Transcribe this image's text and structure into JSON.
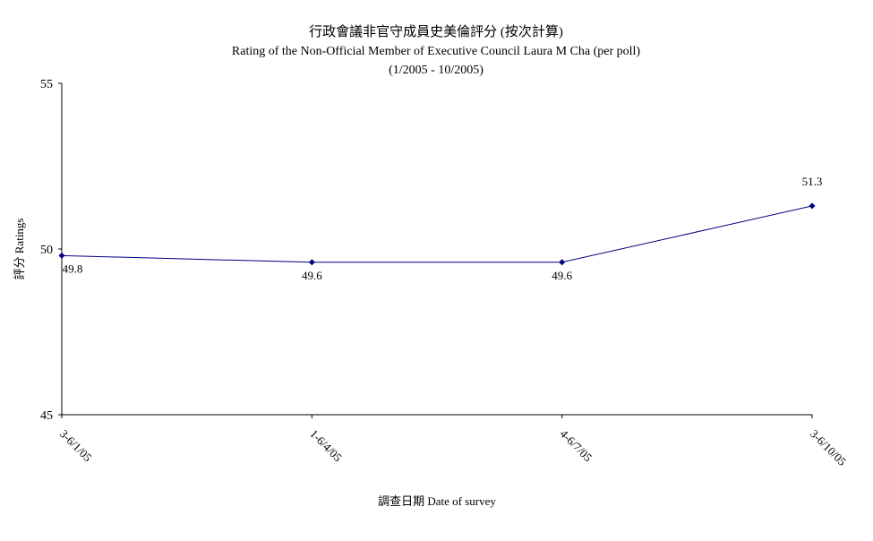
{
  "chart_data": {
    "type": "line",
    "title": "行政會議非官守成員史美倫評分 (按次計算)",
    "subtitle": "Rating of the Non-Official Member of Executive Council Laura M Cha (per poll)",
    "subtitle2": "(1/2005 - 10/2005)",
    "xlabel": "調查日期 Date of survey",
    "ylabel": "評分 Ratings",
    "categories": [
      "3-6/1/05",
      "1-6/4/05",
      "4-6/7/05",
      "3-6/10/05"
    ],
    "values": [
      49.8,
      49.6,
      49.6,
      51.3
    ],
    "data_labels": [
      "49.8",
      "49.6",
      "49.6",
      "51.3"
    ],
    "ylim": [
      45,
      55
    ],
    "yticks": [
      "45",
      "50",
      "55"
    ],
    "grid": false,
    "legend": "none",
    "line_color": "#000080"
  }
}
